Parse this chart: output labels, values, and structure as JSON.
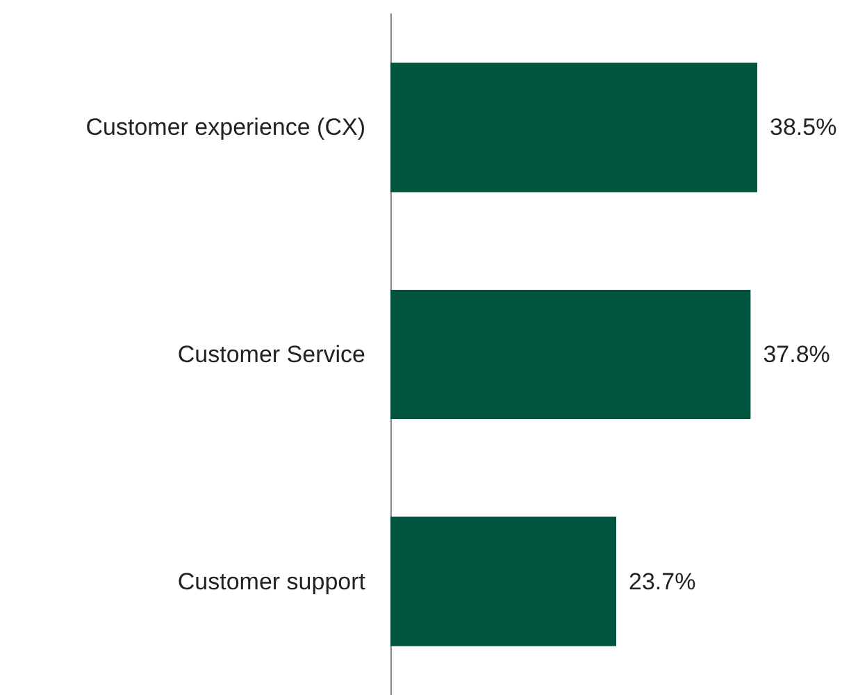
{
  "chart_data": {
    "type": "bar",
    "orientation": "horizontal",
    "categories": [
      "Customer experience (CX)",
      "Customer Service",
      "Customer support"
    ],
    "values": [
      38.5,
      37.8,
      23.7
    ],
    "value_labels": [
      "38.5%",
      "37.8%",
      "23.7%"
    ],
    "color": "#02543e",
    "tick_labels": "y"
  }
}
